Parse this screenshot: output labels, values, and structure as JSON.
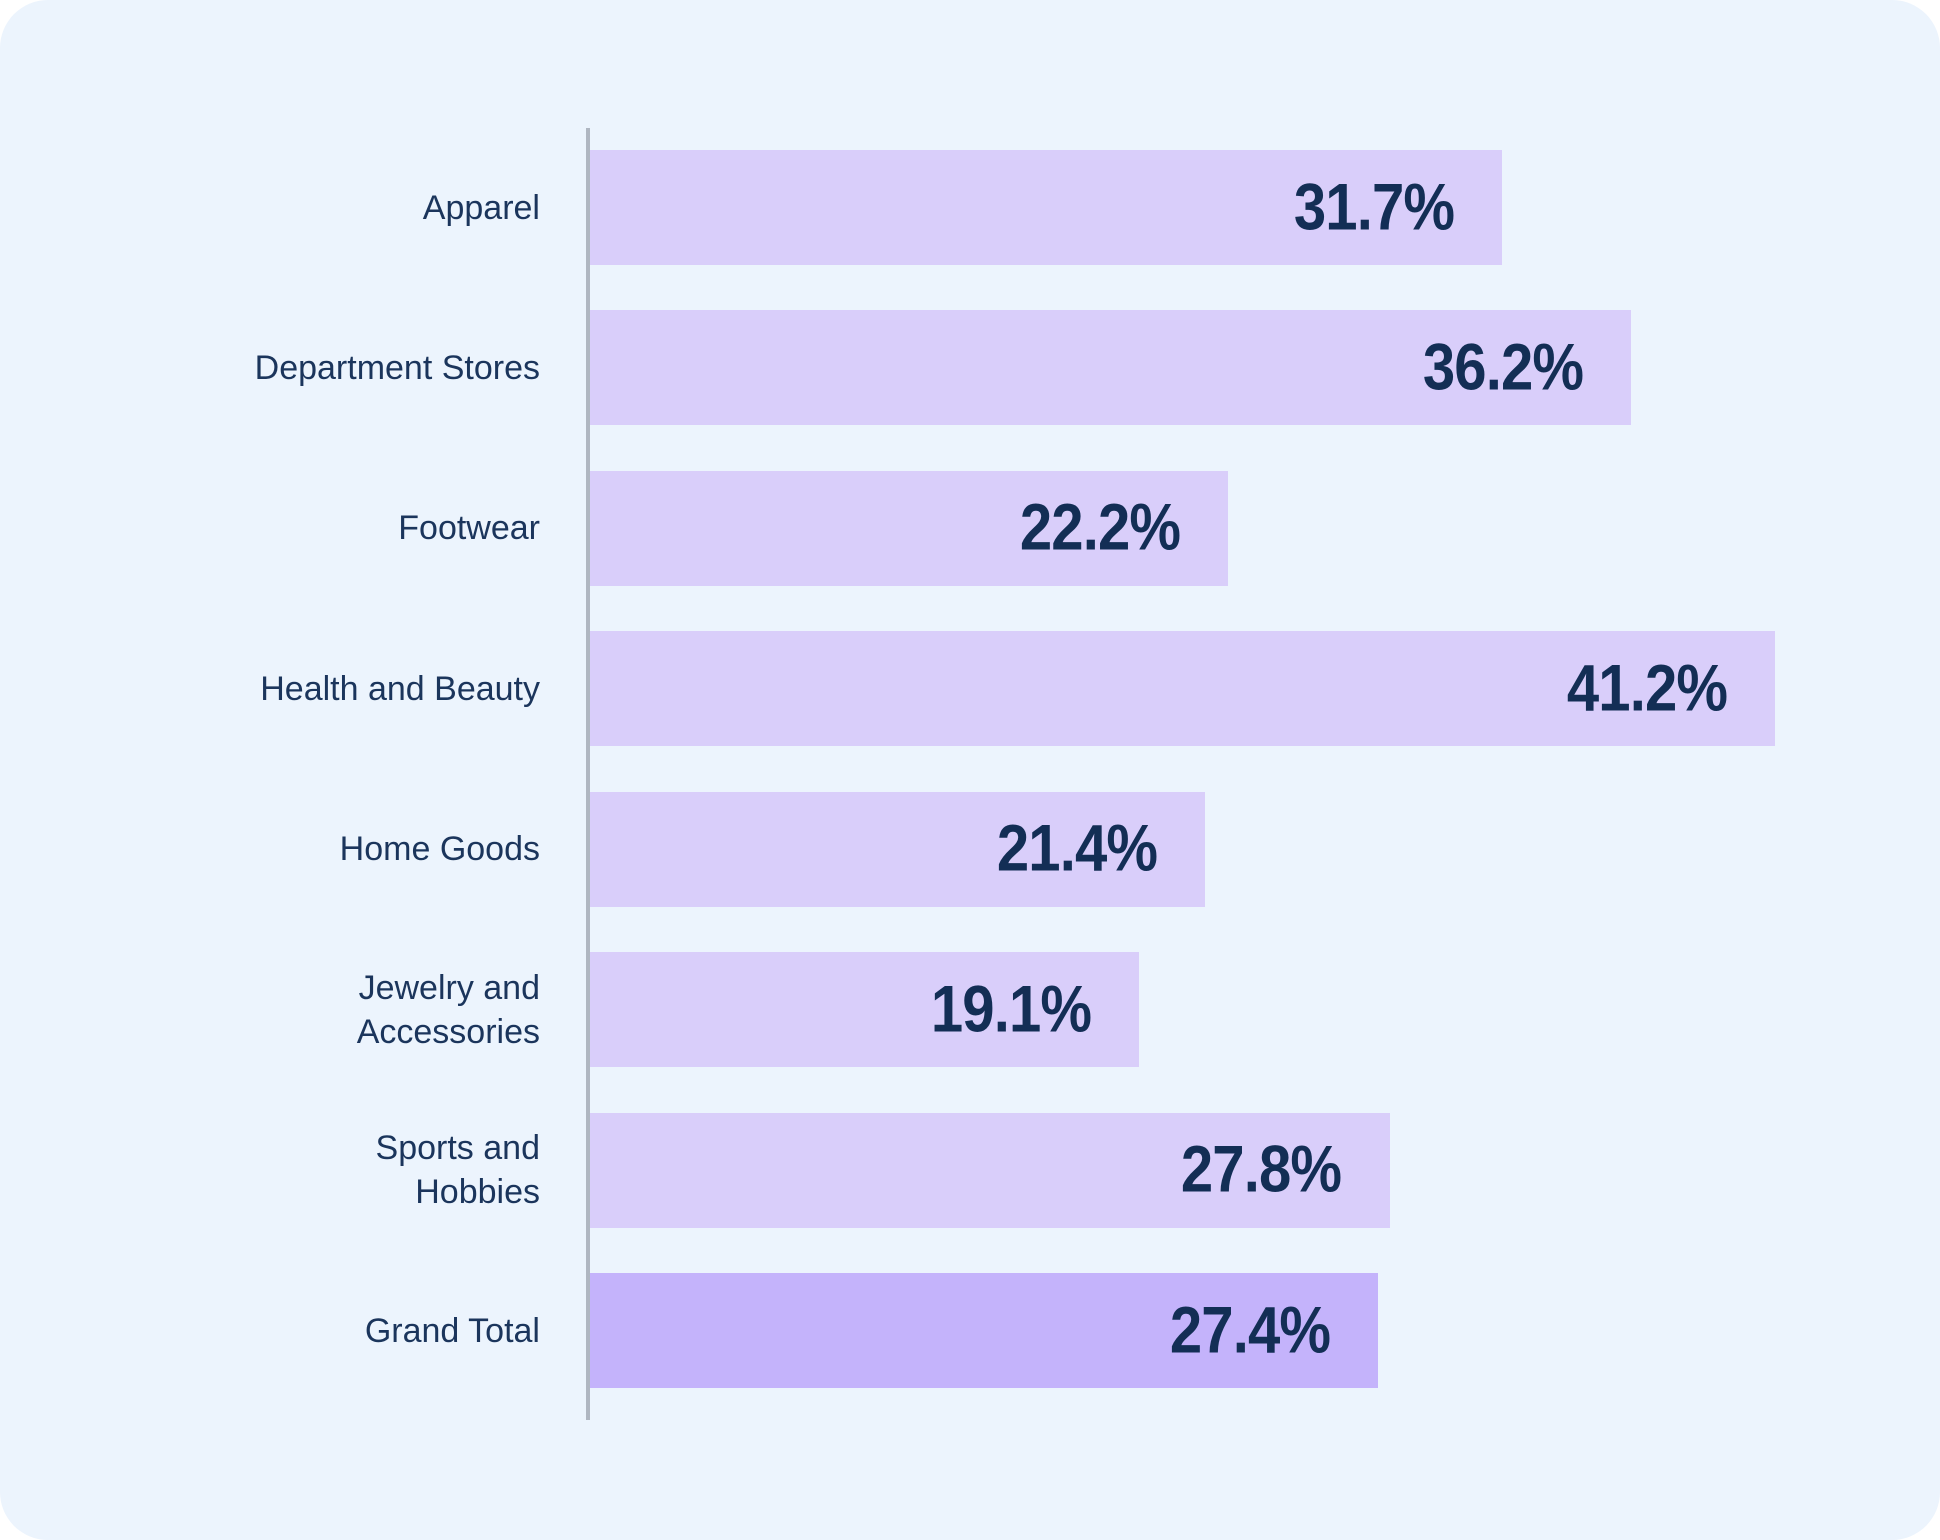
{
  "chart_data": {
    "type": "bar",
    "orientation": "horizontal",
    "title": "",
    "xlabel": "",
    "ylabel": "",
    "xlim": [
      0,
      45
    ],
    "grid": false,
    "legend": false,
    "categories": [
      "Apparel",
      "Department Stores",
      "Footwear",
      "Health and Beauty",
      "Home Goods",
      "Jewelry and Accessories",
      "Sports and Hobbies",
      "Grand Total"
    ],
    "values": [
      31.7,
      36.2,
      22.2,
      41.2,
      21.4,
      19.1,
      27.8,
      27.4
    ],
    "rows": [
      {
        "label": "Apparel",
        "value": 31.7,
        "value_label": "31.7%",
        "is_total": false
      },
      {
        "label": "Department Stores",
        "value": 36.2,
        "value_label": "36.2%",
        "is_total": false
      },
      {
        "label": "Footwear",
        "value": 22.2,
        "value_label": "22.2%",
        "is_total": false
      },
      {
        "label": "Health and Beauty",
        "value": 41.2,
        "value_label": "41.2%",
        "is_total": false
      },
      {
        "label": "Home Goods",
        "value": 21.4,
        "value_label": "21.4%",
        "is_total": false
      },
      {
        "label": "Jewelry and\nAccessories",
        "value": 19.1,
        "value_label": "19.1%",
        "is_total": false
      },
      {
        "label": "Sports and\nHobbies",
        "value": 27.8,
        "value_label": "27.8%",
        "is_total": false
      },
      {
        "label": "Grand Total",
        "value": 27.4,
        "value_label": "27.4%",
        "is_total": true
      }
    ],
    "colors": {
      "background": "#ECF4FD",
      "bar": "#D9CEFA",
      "total_bar": "#C4B3FB",
      "axis_line": "#AFB6C1",
      "label_text": "#1B355C",
      "value_text": "#132E55"
    }
  }
}
